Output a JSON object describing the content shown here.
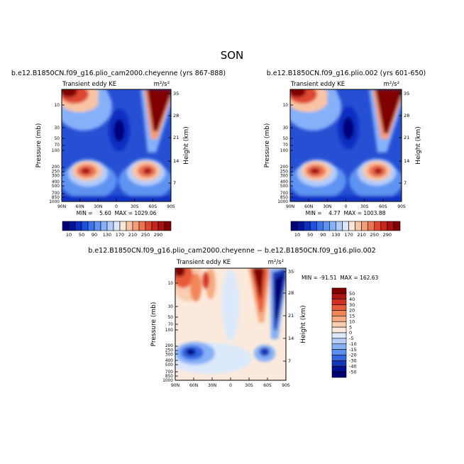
{
  "page": {
    "title": "SON",
    "bottom_title": "b.e12.B1850CN.f09_g16.plio_cam2000.cheyenne − b.e12.B1850CN.f09_g16.plio.002"
  },
  "panels": [
    {
      "title": "b.e12.B1850CN.f09_g16.plio_cam2000.cheyenne (yrs 867-888)",
      "left_label": "Transient eddy KE",
      "units": "m²/s²",
      "stats": "MIN =    5.60  MAX = 1029.06"
    },
    {
      "title": "b.e12.B1850CN.f09_g16.plio.002 (yrs 601-650)",
      "left_label": "Transient eddy KE",
      "units": "m²/s²",
      "stats": "MIN =    4.77  MAX = 1003.88"
    },
    {
      "title": "",
      "left_label": "Transient eddy KE",
      "units": "m²/s²",
      "stats": "MIN = -91.51  MAX = 162.63"
    }
  ],
  "axes": {
    "ylabel": "Pressure (mb)",
    "y2label": "Height (km)",
    "pressure_ticks": [
      "10",
      "30",
      "50",
      "70",
      "100",
      "200",
      "250",
      "300",
      "400",
      "500",
      "700",
      "850",
      "1000"
    ],
    "height_ticks": [
      "35",
      "28",
      "21",
      "14",
      "7"
    ],
    "lat_ticks": [
      "90N",
      "60N",
      "30N",
      "0",
      "30S",
      "60S",
      "90S"
    ]
  },
  "colorbars": {
    "abs": {
      "labels": [
        "10",
        "50",
        "90",
        "130",
        "170",
        "210",
        "250",
        "290"
      ],
      "colors": [
        "#00007a",
        "#00139a",
        "#0a2fc2",
        "#1f52dc",
        "#3d74ea",
        "#5e93f2",
        "#86b0f7",
        "#b2cdf9",
        "#dbe6fb",
        "#fbe6da",
        "#f9c4a4",
        "#f59d78",
        "#ec7251",
        "#de4632",
        "#c8241e",
        "#a70f12",
        "#800000"
      ]
    },
    "diff": {
      "labels": [
        "50",
        "40",
        "30",
        "20",
        "15",
        "10",
        "5",
        "0",
        "-5",
        "-10",
        "-15",
        "-20",
        "-30",
        "-40",
        "-50"
      ],
      "colors": [
        "#800000",
        "#b01515",
        "#d3311f",
        "#e95a38",
        "#f28658",
        "#f6ab82",
        "#f9cdb0",
        "#fbeadc",
        "#dce9fb",
        "#b5cff9",
        "#86b0f7",
        "#5b8fef",
        "#3466e2",
        "#1437b8",
        "#001090",
        "#000070"
      ]
    }
  },
  "chart_data": [
    {
      "type": "heatmap",
      "title": "b.e12.B1850CN.f09_g16.plio_cam2000.cheyenne (yrs 867-888)",
      "xlabel": "",
      "ylabel": "Pressure (mb)",
      "y2label": "Height (km)",
      "x_ticks": [
        "90N",
        "60N",
        "30N",
        "0",
        "30S",
        "60S",
        "90S"
      ],
      "y_ticks": [
        10,
        30,
        50,
        70,
        100,
        200,
        250,
        300,
        400,
        500,
        700,
        850,
        1000
      ],
      "y2_ticks": [
        35,
        28,
        21,
        14,
        7
      ],
      "y_scale": "log",
      "contour_levels": [
        10,
        30,
        50,
        70,
        90,
        110,
        130,
        150,
        170,
        190,
        210,
        230,
        250,
        270,
        290
      ],
      "min": 5.6,
      "max": 1029.06,
      "units": "m²/s²"
    },
    {
      "type": "heatmap",
      "title": "b.e12.B1850CN.f09_g16.plio.002 (yrs 601-650)",
      "xlabel": "",
      "ylabel": "Pressure (mb)",
      "y2label": "Height (km)",
      "x_ticks": [
        "90N",
        "60N",
        "30N",
        "0",
        "30S",
        "60S",
        "90S"
      ],
      "y_ticks": [
        10,
        30,
        50,
        70,
        100,
        200,
        250,
        300,
        400,
        500,
        700,
        850,
        1000
      ],
      "y2_ticks": [
        35,
        28,
        21,
        14,
        7
      ],
      "y_scale": "log",
      "contour_levels": [
        10,
        30,
        50,
        70,
        90,
        110,
        130,
        150,
        170,
        190,
        210,
        230,
        250,
        270,
        290
      ],
      "min": 4.77,
      "max": 1003.88,
      "units": "m²/s²"
    },
    {
      "type": "heatmap",
      "title": "b.e12.B1850CN.f09_g16.plio_cam2000.cheyenne − b.e12.B1850CN.f09_g16.plio.002",
      "xlabel": "",
      "ylabel": "Pressure (mb)",
      "y2label": "Height (km)",
      "x_ticks": [
        "90N",
        "60N",
        "30N",
        "0",
        "30S",
        "60S",
        "90S"
      ],
      "y_ticks": [
        10,
        30,
        50,
        70,
        100,
        200,
        250,
        300,
        400,
        500,
        700,
        850,
        1000
      ],
      "y2_ticks": [
        35,
        28,
        21,
        14,
        7
      ],
      "y_scale": "log",
      "contour_levels": [
        -50,
        -40,
        -30,
        -20,
        -15,
        -10,
        -5,
        0,
        5,
        10,
        15,
        20,
        30,
        40,
        50
      ],
      "min": -91.51,
      "max": 162.63,
      "units": "m²/s²"
    }
  ]
}
